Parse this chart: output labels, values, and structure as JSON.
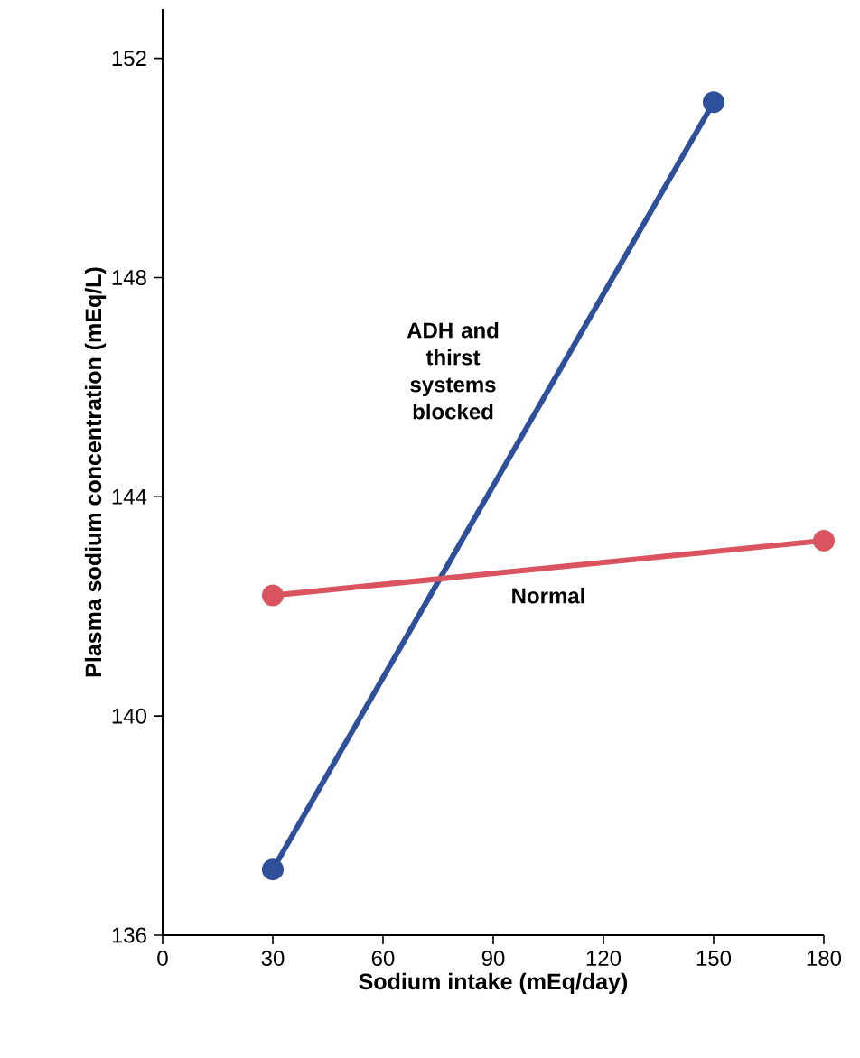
{
  "chart_data": {
    "type": "line",
    "xlabel": "Sodium intake (mEq/day)",
    "ylabel": "Plasma sodium concentration (mEq/L)",
    "xlim": [
      0,
      180
    ],
    "ylim": [
      136,
      152.9
    ],
    "xticks": [
      0,
      30,
      60,
      90,
      120,
      150,
      180
    ],
    "yticks": [
      136,
      140,
      144,
      148,
      152
    ],
    "marker": "circle",
    "series": [
      {
        "name": "ADH and thirst systems blocked",
        "color": "#2e4f9a",
        "x": [
          30,
          150
        ],
        "values": [
          137.2,
          151.2
        ]
      },
      {
        "name": "Normal",
        "color": "#d9545f",
        "x": [
          30,
          180
        ],
        "values": [
          142.2,
          143.2
        ]
      }
    ]
  }
}
